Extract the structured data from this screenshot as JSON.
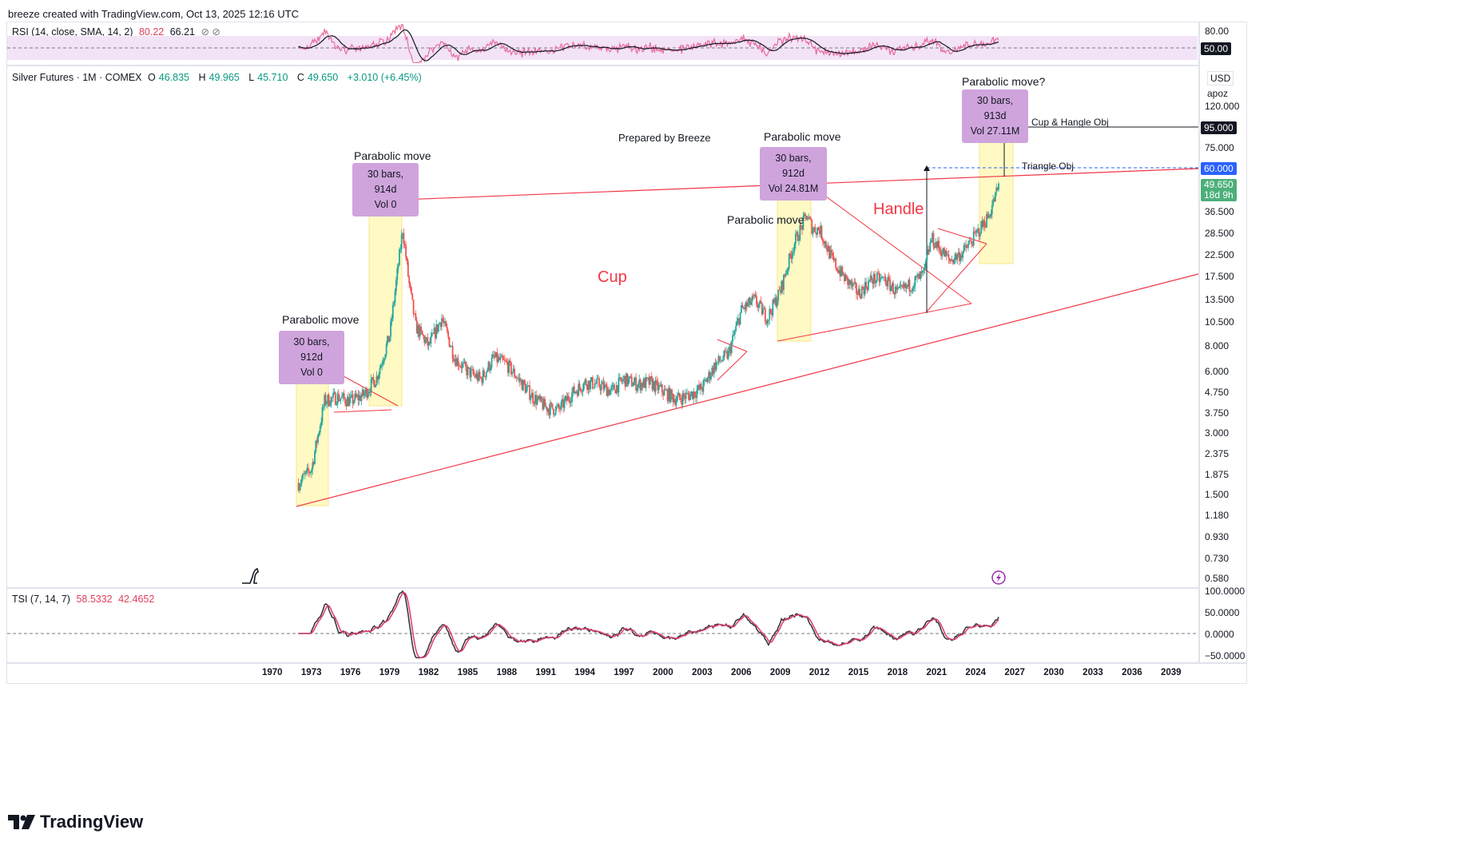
{
  "header": {
    "credit": "breeze created with TradingView.com, Oct 13, 2025 12:16 UTC"
  },
  "rsi": {
    "label": "RSI (14, close, SMA, 14, 2)",
    "v1": "80.22",
    "v2": "66.21",
    "icons": "⊘ ⊘",
    "scale": [
      "80.00",
      "50.00"
    ],
    "tag": "50.00"
  },
  "main": {
    "symbol": "Silver Futures · 1M · COMEX",
    "o_label": "O",
    "o": "46.835",
    "h_label": "H",
    "h": "49.965",
    "l_label": "L",
    "l": "45.710",
    "c_label": "C",
    "c": "49.650",
    "chg": "+3.010 (+6.45%)",
    "currency": "USD",
    "apoz": "apoz",
    "price_tag": "49.650",
    "countdown": "18d 9h",
    "tag_95": "95.000",
    "tag_60": "60.000",
    "price_scale": [
      "120.000",
      "75.000",
      "36.500",
      "28.500",
      "22.500",
      "17.500",
      "13.500",
      "10.500",
      "8.000",
      "6.000",
      "4.750",
      "3.750",
      "3.000",
      "2.375",
      "1.875",
      "1.500",
      "1.180",
      "0.930",
      "0.730",
      "0.580"
    ],
    "annotations": {
      "parabolic": "Parabolic move",
      "parabolic_q": "Parabolic move?",
      "prepared": "Prepared by Breeze",
      "cup": "Cup",
      "handle": "Handle",
      "cup_obj": "Cup & Hangle Obj",
      "tri_obj": "Triangle Obj"
    },
    "badges": [
      {
        "l1": "30 bars, 912d",
        "l2": "Vol 0"
      },
      {
        "l1": "30 bars, 914d",
        "l2": "Vol 0"
      },
      {
        "l1": "30 bars, 912d",
        "l2": "Vol 24.81M"
      },
      {
        "l1": "30 bars, 913d",
        "l2": "Vol 27.11M"
      }
    ]
  },
  "tsi": {
    "label": "TSI (7, 14, 7)",
    "v1": "58.5332",
    "v2": "42.4652",
    "scale": [
      "100.0000",
      "50.0000",
      "0.0000",
      "−50.0000"
    ]
  },
  "x_axis": [
    "1970",
    "1973",
    "1976",
    "1979",
    "1982",
    "1985",
    "1988",
    "1991",
    "1994",
    "1997",
    "2000",
    "2003",
    "2006",
    "2009",
    "2012",
    "2015",
    "2018",
    "2021",
    "2024",
    "2027",
    "2030",
    "2033",
    "2036",
    "2039"
  ],
  "brand": "TradingView",
  "colors": {
    "up": "#26a69a",
    "down": "#ef5350",
    "trend": "#f23645",
    "rsi": "#e86c9c",
    "rsi_band": "#f3e3f7",
    "badge": "#cfa4dc",
    "box": "#fff9c4",
    "tag_blue": "#2962ff"
  },
  "chart_data": {
    "type": "candlestick",
    "title": "Silver Futures · 1M · COMEX",
    "y_scale": "log",
    "y_range": [
      0.5,
      140
    ],
    "x_range": [
      1970,
      2040
    ],
    "series_approx_close": {
      "x": [
        1972.0,
        1973.0,
        1974.0,
        1975.0,
        1976.0,
        1977.0,
        1978.0,
        1979.0,
        1980.0,
        1980.5,
        1981.0,
        1982.0,
        1983.0,
        1984.0,
        1985.0,
        1986.0,
        1987.0,
        1988.0,
        1989.0,
        1990.0,
        1991.0,
        1992.0,
        1993.0,
        1994.0,
        1995.0,
        1996.0,
        1997.0,
        1998.0,
        1999.0,
        2000.0,
        2001.0,
        2002.0,
        2003.0,
        2004.0,
        2005.0,
        2006.0,
        2007.0,
        2008.0,
        2009.0,
        2010.0,
        2011.0,
        2011.5,
        2012.0,
        2013.0,
        2014.0,
        2015.0,
        2016.0,
        2017.0,
        2018.0,
        2019.0,
        2020.0,
        2020.6,
        2021.0,
        2022.0,
        2023.0,
        2024.0,
        2025.0,
        2025.8
      ],
      "y": [
        1.7,
        2.0,
        4.3,
        4.5,
        4.3,
        4.6,
        5.6,
        9.0,
        30.0,
        16.0,
        10.0,
        8.0,
        11.0,
        7.0,
        6.0,
        5.5,
        7.0,
        6.5,
        5.4,
        4.5,
        4.0,
        3.9,
        4.7,
        5.3,
        5.2,
        4.8,
        5.5,
        5.2,
        5.3,
        4.8,
        4.4,
        4.6,
        5.0,
        6.5,
        7.3,
        12.0,
        13.5,
        11.0,
        15.0,
        25.0,
        35.0,
        30.0,
        30.0,
        21.0,
        17.0,
        14.5,
        17.0,
        17.0,
        14.5,
        16.0,
        18.0,
        27.0,
        25.0,
        21.0,
        23.0,
        28.0,
        35.0,
        49.65
      ]
    },
    "levels": [
      {
        "name": "Cup & Hangle Obj",
        "value": 95.0
      },
      {
        "name": "Triangle Obj",
        "value": 60.0
      }
    ]
  }
}
